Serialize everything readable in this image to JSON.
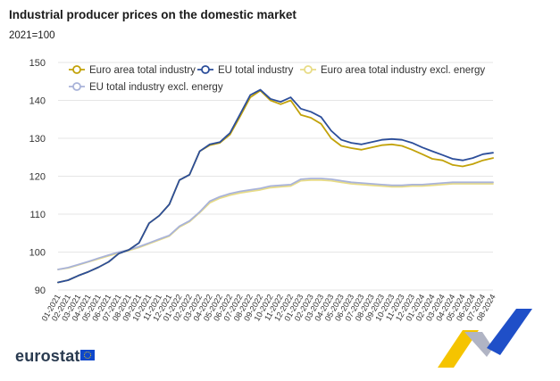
{
  "header": {
    "title": "Industrial producer prices on the domestic market",
    "subtitle": "2021=100"
  },
  "footer": {
    "logo_text": "eurostat"
  },
  "colors": {
    "euro_area_total": "#c2a20a",
    "eu_total": "#2c4e9a",
    "euro_area_excl_energy": "#e8dc86",
    "eu_excl_energy": "#a9b3d9",
    "grid": "#e6e6e6",
    "axis_text": "#333333"
  },
  "chart_data": {
    "type": "line",
    "title": "Industrial producer prices on the domestic market",
    "subtitle": "2021=100",
    "xlabel": "",
    "ylabel": "",
    "ylim": [
      90,
      150
    ],
    "yticks": [
      90,
      100,
      110,
      120,
      130,
      140,
      150
    ],
    "grid": true,
    "legend_position": "top-left",
    "x": [
      "01-2021",
      "02-2021",
      "03-2021",
      "04-2021",
      "05-2021",
      "06-2021",
      "07-2021",
      "08-2021",
      "09-2021",
      "10-2021",
      "11-2021",
      "12-2021",
      "01-2022",
      "02-2022",
      "03-2022",
      "04-2022",
      "05-2022",
      "06-2022",
      "07-2022",
      "08-2022",
      "09-2022",
      "10-2022",
      "11-2022",
      "12-2022",
      "01-2023",
      "02-2023",
      "03-2023",
      "04-2023",
      "05-2023",
      "06-2023",
      "07-2023",
      "08-2023",
      "09-2023",
      "10-2023",
      "11-2023",
      "12-2023",
      "01-2024",
      "02-2024",
      "03-2024",
      "04-2024",
      "05-2024",
      "06-2024",
      "07-2024",
      "08-2024"
    ],
    "series": [
      {
        "name": "Euro area total industry",
        "color": "#c2a20a",
        "values": [
          92.0,
          92.6,
          93.8,
          94.8,
          96.0,
          97.4,
          99.6,
          100.6,
          102.4,
          107.6,
          109.6,
          112.6,
          119.0,
          120.4,
          126.6,
          128.2,
          128.8,
          131.0,
          135.8,
          140.8,
          142.6,
          140.0,
          139.0,
          140.0,
          136.2,
          135.4,
          133.8,
          130.0,
          128.0,
          127.4,
          127.0,
          127.6,
          128.2,
          128.4,
          128.0,
          127.0,
          125.8,
          124.6,
          124.2,
          123.0,
          122.6,
          123.2,
          124.2,
          124.8
        ]
      },
      {
        "name": "EU total industry",
        "color": "#2c4e9a",
        "values": [
          92.0,
          92.6,
          93.8,
          94.8,
          96.0,
          97.4,
          99.6,
          100.6,
          102.4,
          107.6,
          109.6,
          112.6,
          119.0,
          120.4,
          126.6,
          128.4,
          129.0,
          131.4,
          136.4,
          141.4,
          142.8,
          140.4,
          139.6,
          140.8,
          137.8,
          137.0,
          135.6,
          132.0,
          129.6,
          128.8,
          128.4,
          129.0,
          129.6,
          129.8,
          129.6,
          128.8,
          127.6,
          126.6,
          125.6,
          124.6,
          124.2,
          124.8,
          125.8,
          126.2
        ]
      },
      {
        "name": "Euro area total industry excl. energy",
        "color": "#e8dc86",
        "values": [
          95.4,
          95.8,
          96.6,
          97.4,
          98.2,
          99.0,
          99.8,
          100.4,
          101.2,
          102.2,
          103.2,
          104.2,
          106.6,
          108.0,
          110.4,
          113.0,
          114.2,
          115.0,
          115.6,
          116.0,
          116.4,
          117.0,
          117.2,
          117.4,
          118.8,
          119.0,
          119.0,
          118.8,
          118.4,
          118.0,
          117.8,
          117.6,
          117.4,
          117.2,
          117.2,
          117.4,
          117.4,
          117.6,
          117.8,
          118.0,
          118.0,
          118.0,
          118.0,
          118.0
        ]
      },
      {
        "name": "EU total industry excl. energy",
        "color": "#a9b3d9",
        "values": [
          95.4,
          95.9,
          96.7,
          97.5,
          98.4,
          99.2,
          100.0,
          100.6,
          101.4,
          102.4,
          103.4,
          104.4,
          106.8,
          108.2,
          110.6,
          113.4,
          114.6,
          115.4,
          116.0,
          116.4,
          116.8,
          117.4,
          117.6,
          117.8,
          119.2,
          119.4,
          119.4,
          119.2,
          118.8,
          118.4,
          118.2,
          118.0,
          117.8,
          117.6,
          117.6,
          117.8,
          117.8,
          118.0,
          118.2,
          118.4,
          118.4,
          118.4,
          118.4,
          118.4
        ]
      }
    ]
  }
}
